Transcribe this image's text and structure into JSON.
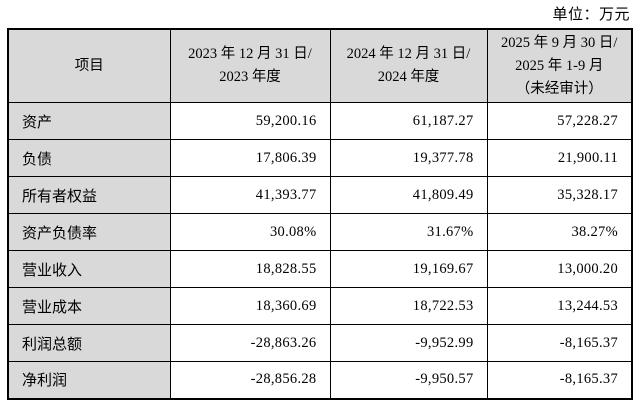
{
  "unit_label": "单位：万元",
  "colors": {
    "header_bg": "#d9d9d9",
    "border": "#000000",
    "text": "#000000",
    "page_bg": "#ffffff"
  },
  "table": {
    "headers": [
      {
        "lines": [
          "项目"
        ]
      },
      {
        "lines": [
          "2023 年 12 月 31 日/",
          "2023 年度"
        ]
      },
      {
        "lines": [
          "2024 年 12 月 31 日/",
          "2024 年度"
        ]
      },
      {
        "lines": [
          "2025 年 9 月 30 日/",
          "2025 年 1-9 月",
          "（未经审计）"
        ]
      }
    ],
    "rows": [
      {
        "label": "资产",
        "values": [
          "59,200.16",
          "61,187.27",
          "57,228.27"
        ]
      },
      {
        "label": "负债",
        "values": [
          "17,806.39",
          "19,377.78",
          "21,900.11"
        ]
      },
      {
        "label": "所有者权益",
        "values": [
          "41,393.77",
          "41,809.49",
          "35,328.17"
        ]
      },
      {
        "label": "资产负债率",
        "values": [
          "30.08%",
          "31.67%",
          "38.27%"
        ]
      },
      {
        "label": "营业收入",
        "values": [
          "18,828.55",
          "19,169.67",
          "13,000.20"
        ]
      },
      {
        "label": "营业成本",
        "values": [
          "18,360.69",
          "18,722.53",
          "13,244.53"
        ]
      },
      {
        "label": "利润总额",
        "values": [
          "-28,863.26",
          "-9,952.99",
          "-8,165.37"
        ]
      },
      {
        "label": "净利润",
        "values": [
          "-28,856.28",
          "-9,950.57",
          "-8,165.37"
        ]
      }
    ]
  }
}
